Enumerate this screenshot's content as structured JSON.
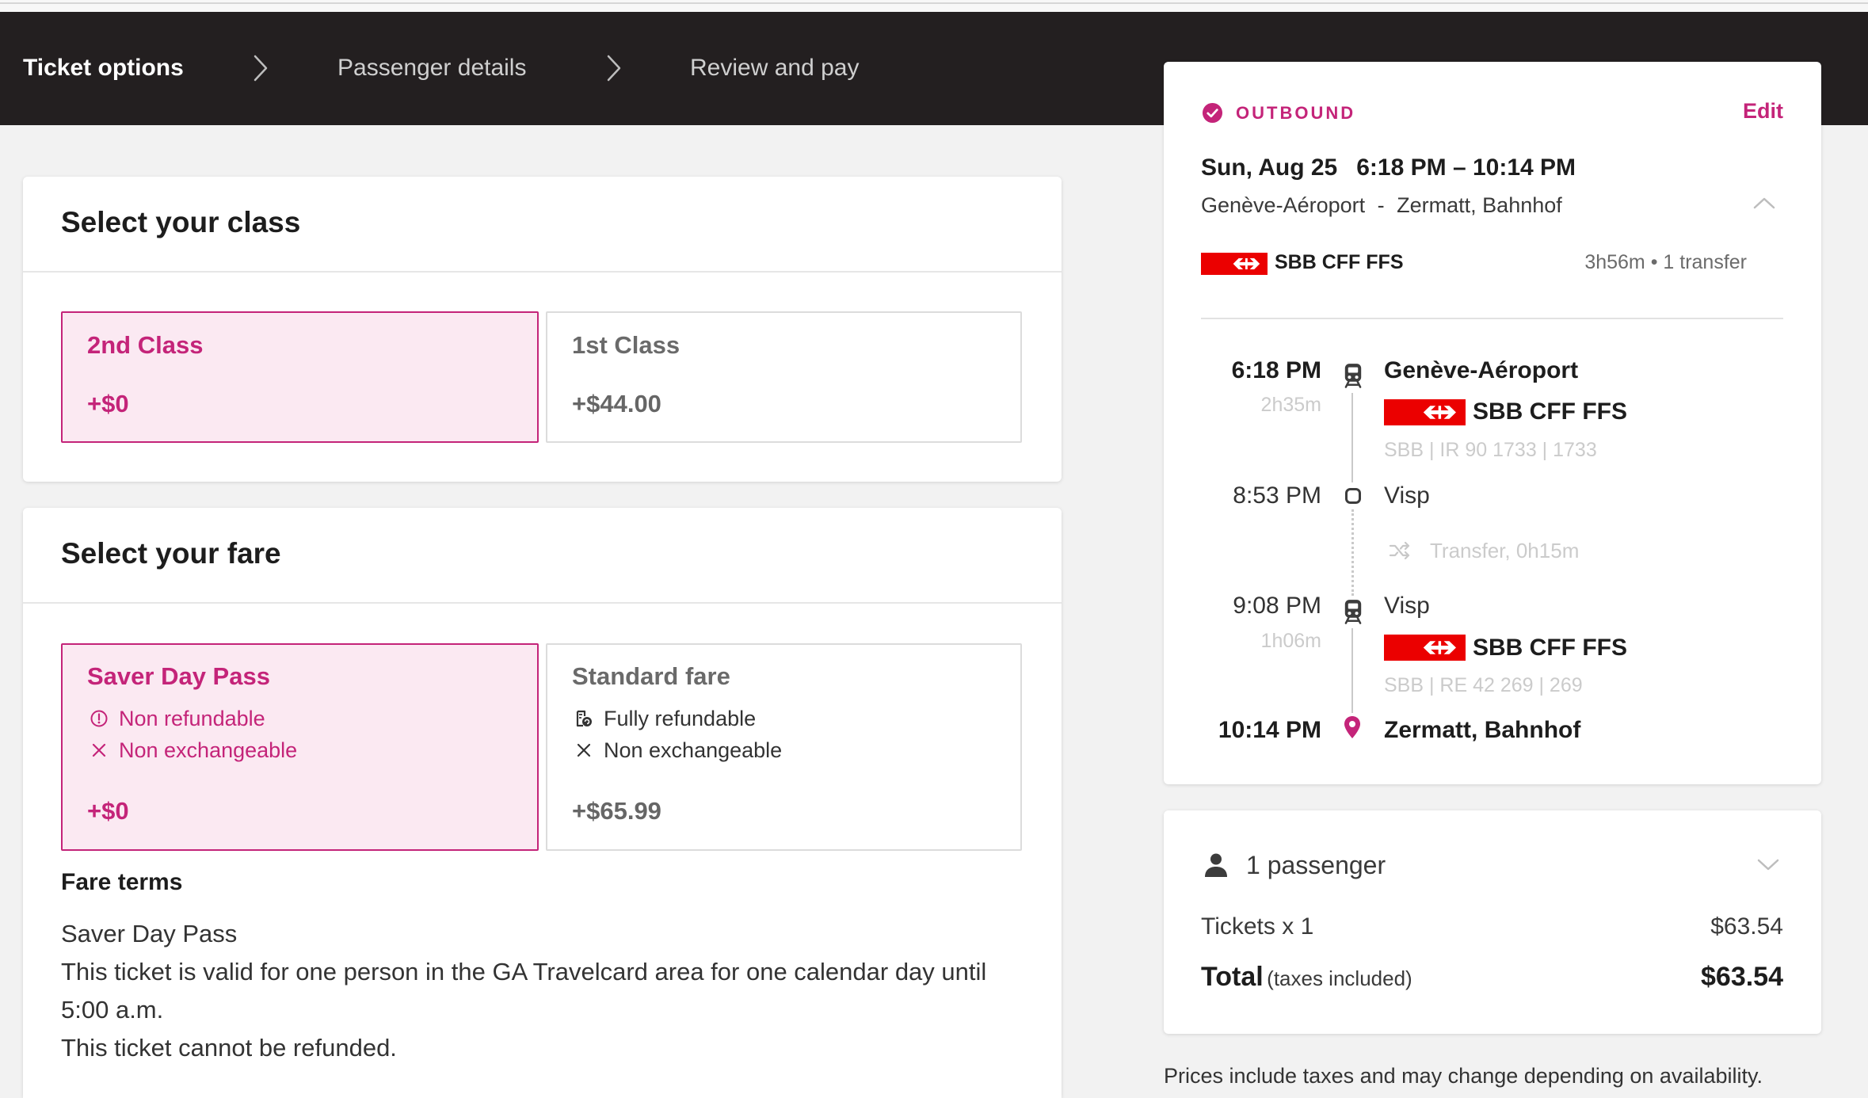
{
  "colors": {
    "accent": "#c42479",
    "accent_bg": "#fbe9f2",
    "header_bg": "#231f20",
    "page_bg": "#f2f2f2",
    "sbb_red": "#eb0000"
  },
  "steps": [
    {
      "label": "Ticket options",
      "state": "active"
    },
    {
      "label": "Passenger details",
      "state": "upcoming"
    },
    {
      "label": "Review and pay",
      "state": "upcoming"
    }
  ],
  "class_section": {
    "title": "Select your class",
    "options": [
      {
        "name": "2nd Class",
        "price": "+$0",
        "selected": true
      },
      {
        "name": "1st Class",
        "price": "+$44.00",
        "selected": false
      }
    ]
  },
  "fare_section": {
    "title": "Select your fare",
    "options": [
      {
        "name": "Saver Day Pass",
        "selected": true,
        "price": "+$0",
        "features": [
          {
            "icon": "info-circle-icon",
            "text": "Non refundable"
          },
          {
            "icon": "close-icon",
            "text": "Non exchangeable"
          }
        ]
      },
      {
        "name": "Standard fare",
        "selected": false,
        "price": "+$65.99",
        "features": [
          {
            "icon": "refund-icon",
            "text": "Fully refundable"
          },
          {
            "icon": "close-icon",
            "text": "Non exchangeable"
          }
        ]
      }
    ]
  },
  "fare_terms": {
    "heading": "Fare terms",
    "lines": [
      "Saver Day Pass",
      "This ticket is valid for one person in the GA Travelcard area for one calendar day until",
      "5:00 a.m.",
      "This ticket cannot be refunded."
    ]
  },
  "trip": {
    "direction_label": "OUTBOUND",
    "edit_label": "Edit",
    "date": "Sun, Aug 25",
    "time_range": "6:18 PM – 10:14 PM",
    "origin": "Genève-Aéroport",
    "route_separator": "-",
    "destination": "Zermatt, Bahnhof",
    "operator": "SBB CFF FFS",
    "summary": "3h56m • 1 transfer",
    "timeline": [
      {
        "time": "6:18 PM",
        "station": "Genève-Aéroport",
        "icon": "train-icon",
        "duration": "2h35m",
        "operator": "SBB CFF FFS",
        "service": "SBB | IR 90 1733 | 1733"
      },
      {
        "time": "8:53 PM",
        "station": "Visp",
        "icon": "stop-icon"
      },
      {
        "transfer": "Transfer, 0h15m",
        "icon": "transfer-icon"
      },
      {
        "time": "9:08 PM",
        "station": "Visp",
        "icon": "train-icon",
        "duration": "1h06m",
        "operator": "SBB CFF FFS",
        "service": "SBB | RE 42 269 | 269"
      },
      {
        "time": "10:14 PM",
        "station": "Zermatt, Bahnhof",
        "icon": "pin-icon"
      }
    ]
  },
  "summary": {
    "passengers": "1 passenger",
    "tickets_label": "Tickets x 1",
    "tickets_price": "$63.54",
    "total_label": "Total",
    "total_note": "(taxes included)",
    "total_price": "$63.54"
  },
  "footer_note": "Prices include taxes and may change depending on availability."
}
